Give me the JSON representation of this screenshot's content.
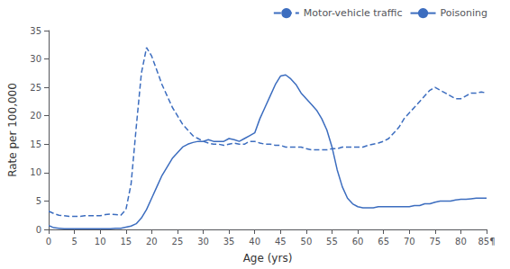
{
  "chart_data": {
    "type": "line",
    "xlabel": "Age (yrs)",
    "ylabel": "Rate per 100,000",
    "xlim": [
      0,
      85
    ],
    "ylim": [
      0,
      35
    ],
    "xticks": [
      0,
      5,
      10,
      15,
      20,
      25,
      30,
      35,
      40,
      45,
      50,
      55,
      60,
      65,
      70,
      75,
      80,
      {
        "value": 85,
        "label": "85¶"
      }
    ],
    "yticks": [
      0,
      5,
      10,
      15,
      20,
      25,
      30,
      35
    ],
    "grid": false,
    "legend": "upper right",
    "x": [
      0,
      1,
      2,
      3,
      4,
      5,
      6,
      7,
      8,
      9,
      10,
      11,
      12,
      13,
      14,
      15,
      16,
      17,
      18,
      19,
      20,
      21,
      22,
      23,
      24,
      25,
      26,
      27,
      28,
      29,
      30,
      31,
      32,
      33,
      34,
      35,
      36,
      37,
      38,
      39,
      40,
      41,
      42,
      43,
      44,
      45,
      46,
      47,
      48,
      49,
      50,
      51,
      52,
      53,
      54,
      55,
      56,
      57,
      58,
      59,
      60,
      61,
      62,
      63,
      64,
      65,
      66,
      67,
      68,
      69,
      70,
      71,
      72,
      73,
      74,
      75,
      76,
      77,
      78,
      79,
      80,
      81,
      82,
      83,
      84,
      85
    ],
    "series": [
      {
        "name": "Motor-vehicle traffic",
        "color": "#3c6dbf",
        "line_style": "dashed",
        "values": [
          3.2,
          2.8,
          2.5,
          2.4,
          2.3,
          2.3,
          2.3,
          2.4,
          2.4,
          2.4,
          2.4,
          2.6,
          2.7,
          2.6,
          2.5,
          3.5,
          8.0,
          18.0,
          27.5,
          32.0,
          30.5,
          28.0,
          25.5,
          23.5,
          21.5,
          20.0,
          18.5,
          17.5,
          16.5,
          16.0,
          15.5,
          15.2,
          15.0,
          15.0,
          14.8,
          15.0,
          15.2,
          15.0,
          15.0,
          15.5,
          15.5,
          15.2,
          15.0,
          15.0,
          14.8,
          14.8,
          14.5,
          14.5,
          14.5,
          14.5,
          14.2,
          14.0,
          14.0,
          14.0,
          14.0,
          14.2,
          14.2,
          14.5,
          14.5,
          14.5,
          14.5,
          14.5,
          14.8,
          15.0,
          15.2,
          15.5,
          16.0,
          17.0,
          18.0,
          19.5,
          20.5,
          21.5,
          22.5,
          23.5,
          24.5,
          25.0,
          24.5,
          24.0,
          23.5,
          23.0,
          23.0,
          23.5,
          24.0,
          24.0,
          24.2,
          24.0
        ]
      },
      {
        "name": "Poisoning",
        "color": "#3c6dbf",
        "line_style": "solid",
        "values": [
          0.7,
          0.3,
          0.2,
          0.1,
          0.1,
          0.1,
          0.1,
          0.1,
          0.1,
          0.1,
          0.1,
          0.1,
          0.1,
          0.2,
          0.2,
          0.4,
          0.6,
          1.0,
          2.0,
          3.5,
          5.5,
          7.5,
          9.5,
          11.0,
          12.5,
          13.5,
          14.5,
          15.0,
          15.3,
          15.5,
          15.5,
          15.8,
          15.5,
          15.5,
          15.5,
          16.0,
          15.8,
          15.5,
          16.0,
          16.5,
          17.0,
          19.5,
          21.5,
          23.5,
          25.5,
          27.0,
          27.2,
          26.5,
          25.5,
          24.0,
          23.0,
          22.0,
          21.0,
          19.5,
          17.5,
          14.5,
          10.5,
          7.5,
          5.5,
          4.5,
          4.0,
          3.8,
          3.8,
          3.8,
          4.0,
          4.0,
          4.0,
          4.0,
          4.0,
          4.0,
          4.0,
          4.2,
          4.2,
          4.5,
          4.5,
          4.8,
          5.0,
          5.0,
          5.0,
          5.2,
          5.3,
          5.3,
          5.4,
          5.5,
          5.5,
          5.5
        ]
      }
    ]
  }
}
